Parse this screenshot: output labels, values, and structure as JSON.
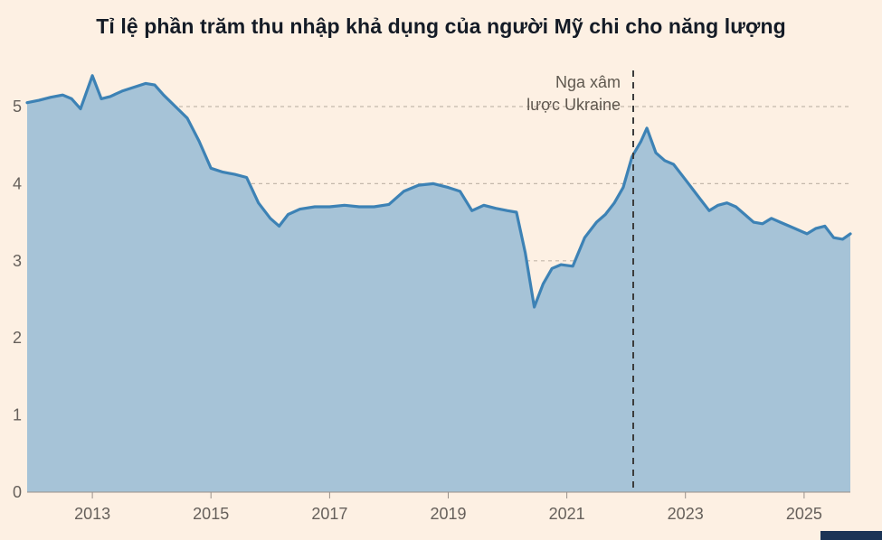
{
  "page": {
    "background": "#fdf0e3",
    "title_color": "#141b26",
    "accent_bar_color": "#1c3456"
  },
  "chart_data": {
    "type": "area",
    "title": "Tỉ lệ phần trăm thu nhập khả dụng của người Mỹ chi cho năng lượng",
    "xlabel": "",
    "ylabel": "",
    "xlim": [
      2011.9,
      2025.78
    ],
    "ylim": [
      0,
      5.55
    ],
    "x_ticks": [
      2013,
      2015,
      2017,
      2019,
      2021,
      2023,
      2025
    ],
    "y_ticks": [
      0,
      1,
      2,
      3,
      4,
      5
    ],
    "grid": "dashed-horizontal",
    "legend": "none",
    "line_color": "#3d82b5",
    "fill_color": "#a6c3d7",
    "grid_color": "#c4b8ab",
    "axis_color": "#99908a",
    "label_color": "#66605b",
    "annotation_line_color": "#3c3c3c",
    "annotation_text_color": "#5f584f",
    "x": [
      2011.9,
      2012.1,
      2012.3,
      2012.5,
      2012.65,
      2012.8,
      2013.0,
      2013.15,
      2013.3,
      2013.5,
      2013.7,
      2013.9,
      2014.05,
      2014.2,
      2014.4,
      2014.6,
      2014.8,
      2015.0,
      2015.2,
      2015.4,
      2015.6,
      2015.8,
      2016.0,
      2016.15,
      2016.3,
      2016.5,
      2016.75,
      2017.0,
      2017.25,
      2017.5,
      2017.75,
      2018.0,
      2018.25,
      2018.5,
      2018.75,
      2019.0,
      2019.2,
      2019.4,
      2019.6,
      2019.8,
      2020.0,
      2020.15,
      2020.3,
      2020.45,
      2020.6,
      2020.75,
      2020.9,
      2021.1,
      2021.3,
      2021.5,
      2021.65,
      2021.8,
      2021.95,
      2022.1,
      2022.25,
      2022.35,
      2022.5,
      2022.65,
      2022.8,
      2022.95,
      2023.1,
      2023.25,
      2023.4,
      2023.55,
      2023.7,
      2023.85,
      2024.0,
      2024.15,
      2024.3,
      2024.45,
      2024.6,
      2024.75,
      2024.9,
      2025.05,
      2025.2,
      2025.35,
      2025.5,
      2025.65,
      2025.78
    ],
    "values": [
      5.05,
      5.08,
      5.12,
      5.15,
      5.1,
      4.97,
      5.4,
      5.1,
      5.13,
      5.2,
      5.25,
      5.3,
      5.28,
      5.15,
      5.0,
      4.85,
      4.55,
      4.2,
      4.15,
      4.12,
      4.08,
      3.75,
      3.55,
      3.45,
      3.6,
      3.67,
      3.7,
      3.7,
      3.72,
      3.7,
      3.7,
      3.73,
      3.9,
      3.98,
      4.0,
      3.95,
      3.9,
      3.65,
      3.72,
      3.68,
      3.65,
      3.63,
      3.1,
      2.4,
      2.7,
      2.9,
      2.95,
      2.93,
      3.3,
      3.5,
      3.6,
      3.75,
      3.95,
      4.35,
      4.55,
      4.72,
      4.4,
      4.3,
      4.25,
      4.1,
      3.95,
      3.8,
      3.65,
      3.72,
      3.75,
      3.7,
      3.6,
      3.5,
      3.48,
      3.55,
      3.5,
      3.45,
      3.4,
      3.35,
      3.42,
      3.45,
      3.3,
      3.28,
      3.35
    ],
    "annotation": {
      "text_lines": [
        "Nga xâm",
        "lược Ukraine"
      ],
      "x": 2022.12,
      "marker": "dashed-vertical-line"
    }
  }
}
